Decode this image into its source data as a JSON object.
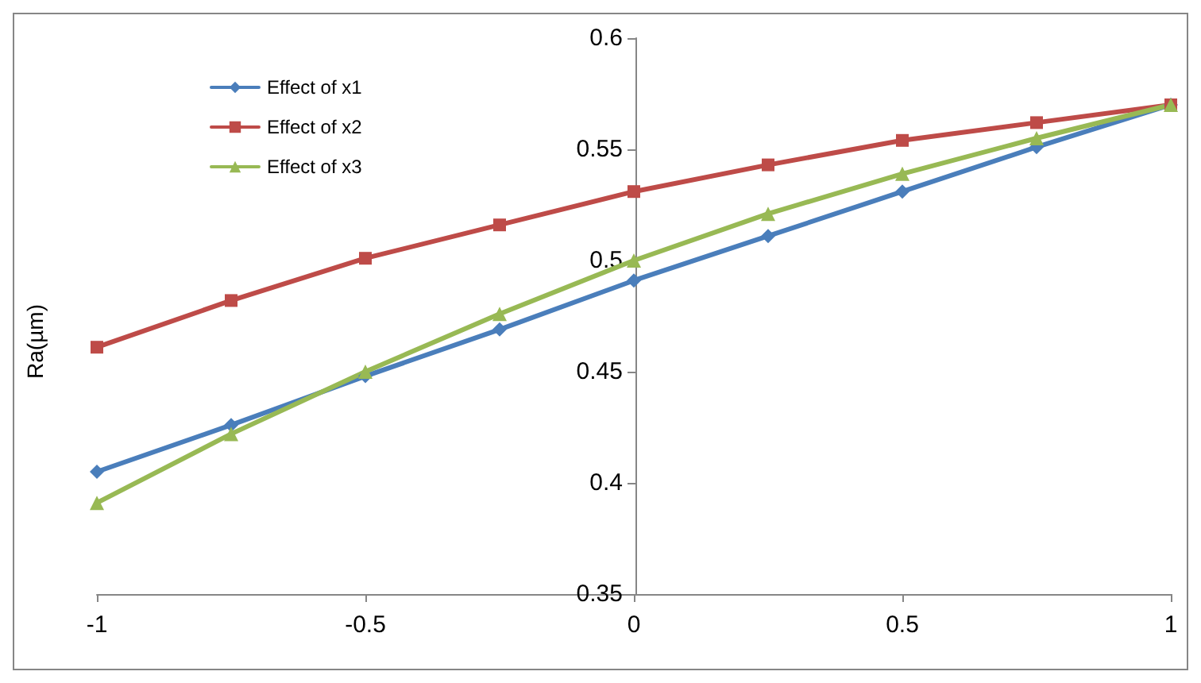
{
  "chart_data": {
    "type": "line",
    "ylabel": "Ra(µm)",
    "x": [
      -1,
      -0.75,
      -0.5,
      -0.25,
      0,
      0.25,
      0.5,
      0.75,
      1
    ],
    "series": [
      {
        "name": "Effect of x1",
        "color": "#4a7ebb",
        "marker": "diamond",
        "values": [
          0.405,
          0.426,
          0.448,
          0.469,
          0.491,
          0.511,
          0.531,
          0.551,
          0.57
        ]
      },
      {
        "name": "Effect of x2",
        "color": "#be4b48",
        "marker": "square",
        "values": [
          0.461,
          0.482,
          0.501,
          0.516,
          0.531,
          0.543,
          0.554,
          0.562,
          0.57
        ]
      },
      {
        "name": "Effect of x3",
        "color": "#98b954",
        "marker": "triangle",
        "values": [
          0.391,
          0.422,
          0.45,
          0.476,
          0.5,
          0.521,
          0.539,
          0.555,
          0.57
        ]
      }
    ],
    "xlim": [
      -1,
      1
    ],
    "xticks": [
      -1,
      -0.5,
      0,
      0.5,
      1
    ],
    "ylim": [
      0.35,
      0.6
    ],
    "yticks": [
      0.35,
      0.4,
      0.45,
      0.5,
      0.55,
      0.6
    ],
    "grid": false,
    "legend": "top left"
  }
}
